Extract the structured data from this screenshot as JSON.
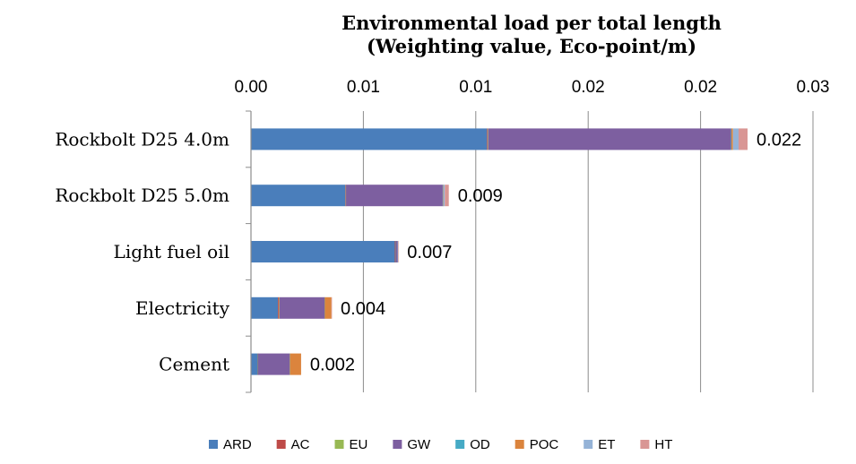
{
  "chart_data": {
    "type": "bar",
    "orientation": "horizontal",
    "stacked": true,
    "title": [
      "Environmental load per total length",
      "(Weighting value, Eco-point/m)"
    ],
    "xlabel": "",
    "ylabel": "",
    "xlim": [
      0,
      0.025
    ],
    "x_tick_labels": [
      "0.00",
      "0.01",
      "0.01",
      "0.02",
      "0.02",
      "0.03"
    ],
    "grid": "vertical",
    "legend_position": "bottom",
    "categories": [
      "Rockbolt D25 4.0m",
      "Rockbolt D25 5.0m",
      "Light fuel oil",
      "Electricity",
      "Cement"
    ],
    "data_labels": [
      "0.022",
      "0.009",
      "0.007",
      "0.004",
      "0.002"
    ],
    "series": [
      {
        "name": "ARD",
        "color": "#4A7EBB",
        "values": [
          0.0105,
          0.0042,
          0.0064,
          0.0012,
          0.0003
        ]
      },
      {
        "name": "AC",
        "color": "#BE4B48",
        "values": [
          3e-05,
          2e-05,
          2e-05,
          5e-05,
          1e-05
        ]
      },
      {
        "name": "EU",
        "color": "#98B954",
        "values": [
          2e-05,
          1e-05,
          1e-05,
          2e-05,
          1e-05
        ]
      },
      {
        "name": "GW",
        "color": "#7D5FA0",
        "values": [
          0.0108,
          0.0043,
          0.0001,
          0.002,
          0.0014
        ]
      },
      {
        "name": "OD",
        "color": "#46AAC5",
        "values": [
          2e-05,
          1e-05,
          1e-05,
          1e-05,
          1e-05
        ]
      },
      {
        "name": "POC",
        "color": "#DB843D",
        "values": [
          7e-05,
          2e-05,
          0.0,
          0.0003,
          0.0005
        ]
      },
      {
        "name": "ET",
        "color": "#95B3D7",
        "values": [
          0.00025,
          6e-05,
          0.0,
          0.0,
          0.0
        ]
      },
      {
        "name": "HT",
        "color": "#D99694",
        "values": [
          0.0004,
          0.00018,
          1e-05,
          1e-05,
          0.0
        ]
      }
    ]
  }
}
